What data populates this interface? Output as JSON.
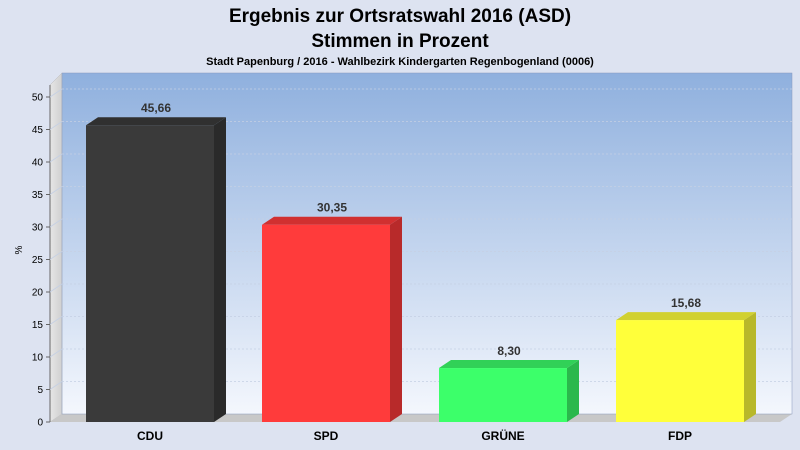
{
  "chart_data": {
    "type": "bar",
    "title": "Ergebnis zur Ortsratswahl 2016 (ASD)",
    "subtitle": "Stimmen in Prozent",
    "caption": "Stadt Papenburg / 2016 - Wahlbezirk Kindergarten Regenbogenland (0006)",
    "ylabel": "%",
    "xlabel": "",
    "ylim": [
      0,
      50
    ],
    "yticks": [
      0,
      5,
      10,
      15,
      20,
      25,
      30,
      35,
      40,
      45,
      50
    ],
    "categories": [
      "CDU",
      "SPD",
      "GRÜNE",
      "FDP"
    ],
    "values": [
      45.66,
      30.35,
      8.3,
      15.68
    ],
    "value_labels": [
      "45,66",
      "30,35",
      "8,30",
      "15,68"
    ],
    "colors": [
      "#3a3a3a",
      "#ff3b3b",
      "#3cff6a",
      "#ffff3a"
    ],
    "grid": true,
    "style": "3d"
  }
}
